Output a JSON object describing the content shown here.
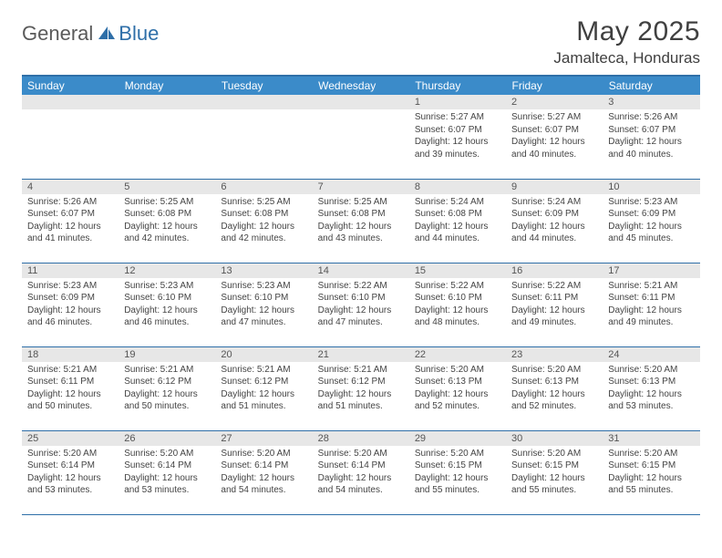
{
  "logo": {
    "text1": "General",
    "text2": "Blue"
  },
  "title": "May 2025",
  "location": "Jamalteca, Honduras",
  "colors": {
    "header_bg": "#3b8bc9",
    "header_text": "#ffffff",
    "border": "#2f6fa8",
    "daynum_bg": "#e7e7e7",
    "body_text": "#444444",
    "logo_gray": "#5a5a5a",
    "logo_blue": "#2f6fa8"
  },
  "weekdays": [
    "Sunday",
    "Monday",
    "Tuesday",
    "Wednesday",
    "Thursday",
    "Friday",
    "Saturday"
  ],
  "weeks": [
    [
      null,
      null,
      null,
      null,
      {
        "n": "1",
        "sr": "5:27 AM",
        "ss": "6:07 PM",
        "dl": "12 hours and 39 minutes."
      },
      {
        "n": "2",
        "sr": "5:27 AM",
        "ss": "6:07 PM",
        "dl": "12 hours and 40 minutes."
      },
      {
        "n": "3",
        "sr": "5:26 AM",
        "ss": "6:07 PM",
        "dl": "12 hours and 40 minutes."
      }
    ],
    [
      {
        "n": "4",
        "sr": "5:26 AM",
        "ss": "6:07 PM",
        "dl": "12 hours and 41 minutes."
      },
      {
        "n": "5",
        "sr": "5:25 AM",
        "ss": "6:08 PM",
        "dl": "12 hours and 42 minutes."
      },
      {
        "n": "6",
        "sr": "5:25 AM",
        "ss": "6:08 PM",
        "dl": "12 hours and 42 minutes."
      },
      {
        "n": "7",
        "sr": "5:25 AM",
        "ss": "6:08 PM",
        "dl": "12 hours and 43 minutes."
      },
      {
        "n": "8",
        "sr": "5:24 AM",
        "ss": "6:08 PM",
        "dl": "12 hours and 44 minutes."
      },
      {
        "n": "9",
        "sr": "5:24 AM",
        "ss": "6:09 PM",
        "dl": "12 hours and 44 minutes."
      },
      {
        "n": "10",
        "sr": "5:23 AM",
        "ss": "6:09 PM",
        "dl": "12 hours and 45 minutes."
      }
    ],
    [
      {
        "n": "11",
        "sr": "5:23 AM",
        "ss": "6:09 PM",
        "dl": "12 hours and 46 minutes."
      },
      {
        "n": "12",
        "sr": "5:23 AM",
        "ss": "6:10 PM",
        "dl": "12 hours and 46 minutes."
      },
      {
        "n": "13",
        "sr": "5:23 AM",
        "ss": "6:10 PM",
        "dl": "12 hours and 47 minutes."
      },
      {
        "n": "14",
        "sr": "5:22 AM",
        "ss": "6:10 PM",
        "dl": "12 hours and 47 minutes."
      },
      {
        "n": "15",
        "sr": "5:22 AM",
        "ss": "6:10 PM",
        "dl": "12 hours and 48 minutes."
      },
      {
        "n": "16",
        "sr": "5:22 AM",
        "ss": "6:11 PM",
        "dl": "12 hours and 49 minutes."
      },
      {
        "n": "17",
        "sr": "5:21 AM",
        "ss": "6:11 PM",
        "dl": "12 hours and 49 minutes."
      }
    ],
    [
      {
        "n": "18",
        "sr": "5:21 AM",
        "ss": "6:11 PM",
        "dl": "12 hours and 50 minutes."
      },
      {
        "n": "19",
        "sr": "5:21 AM",
        "ss": "6:12 PM",
        "dl": "12 hours and 50 minutes."
      },
      {
        "n": "20",
        "sr": "5:21 AM",
        "ss": "6:12 PM",
        "dl": "12 hours and 51 minutes."
      },
      {
        "n": "21",
        "sr": "5:21 AM",
        "ss": "6:12 PM",
        "dl": "12 hours and 51 minutes."
      },
      {
        "n": "22",
        "sr": "5:20 AM",
        "ss": "6:13 PM",
        "dl": "12 hours and 52 minutes."
      },
      {
        "n": "23",
        "sr": "5:20 AM",
        "ss": "6:13 PM",
        "dl": "12 hours and 52 minutes."
      },
      {
        "n": "24",
        "sr": "5:20 AM",
        "ss": "6:13 PM",
        "dl": "12 hours and 53 minutes."
      }
    ],
    [
      {
        "n": "25",
        "sr": "5:20 AM",
        "ss": "6:14 PM",
        "dl": "12 hours and 53 minutes."
      },
      {
        "n": "26",
        "sr": "5:20 AM",
        "ss": "6:14 PM",
        "dl": "12 hours and 53 minutes."
      },
      {
        "n": "27",
        "sr": "5:20 AM",
        "ss": "6:14 PM",
        "dl": "12 hours and 54 minutes."
      },
      {
        "n": "28",
        "sr": "5:20 AM",
        "ss": "6:14 PM",
        "dl": "12 hours and 54 minutes."
      },
      {
        "n": "29",
        "sr": "5:20 AM",
        "ss": "6:15 PM",
        "dl": "12 hours and 55 minutes."
      },
      {
        "n": "30",
        "sr": "5:20 AM",
        "ss": "6:15 PM",
        "dl": "12 hours and 55 minutes."
      },
      {
        "n": "31",
        "sr": "5:20 AM",
        "ss": "6:15 PM",
        "dl": "12 hours and 55 minutes."
      }
    ]
  ],
  "labels": {
    "sunrise": "Sunrise:",
    "sunset": "Sunset:",
    "daylight": "Daylight:"
  }
}
